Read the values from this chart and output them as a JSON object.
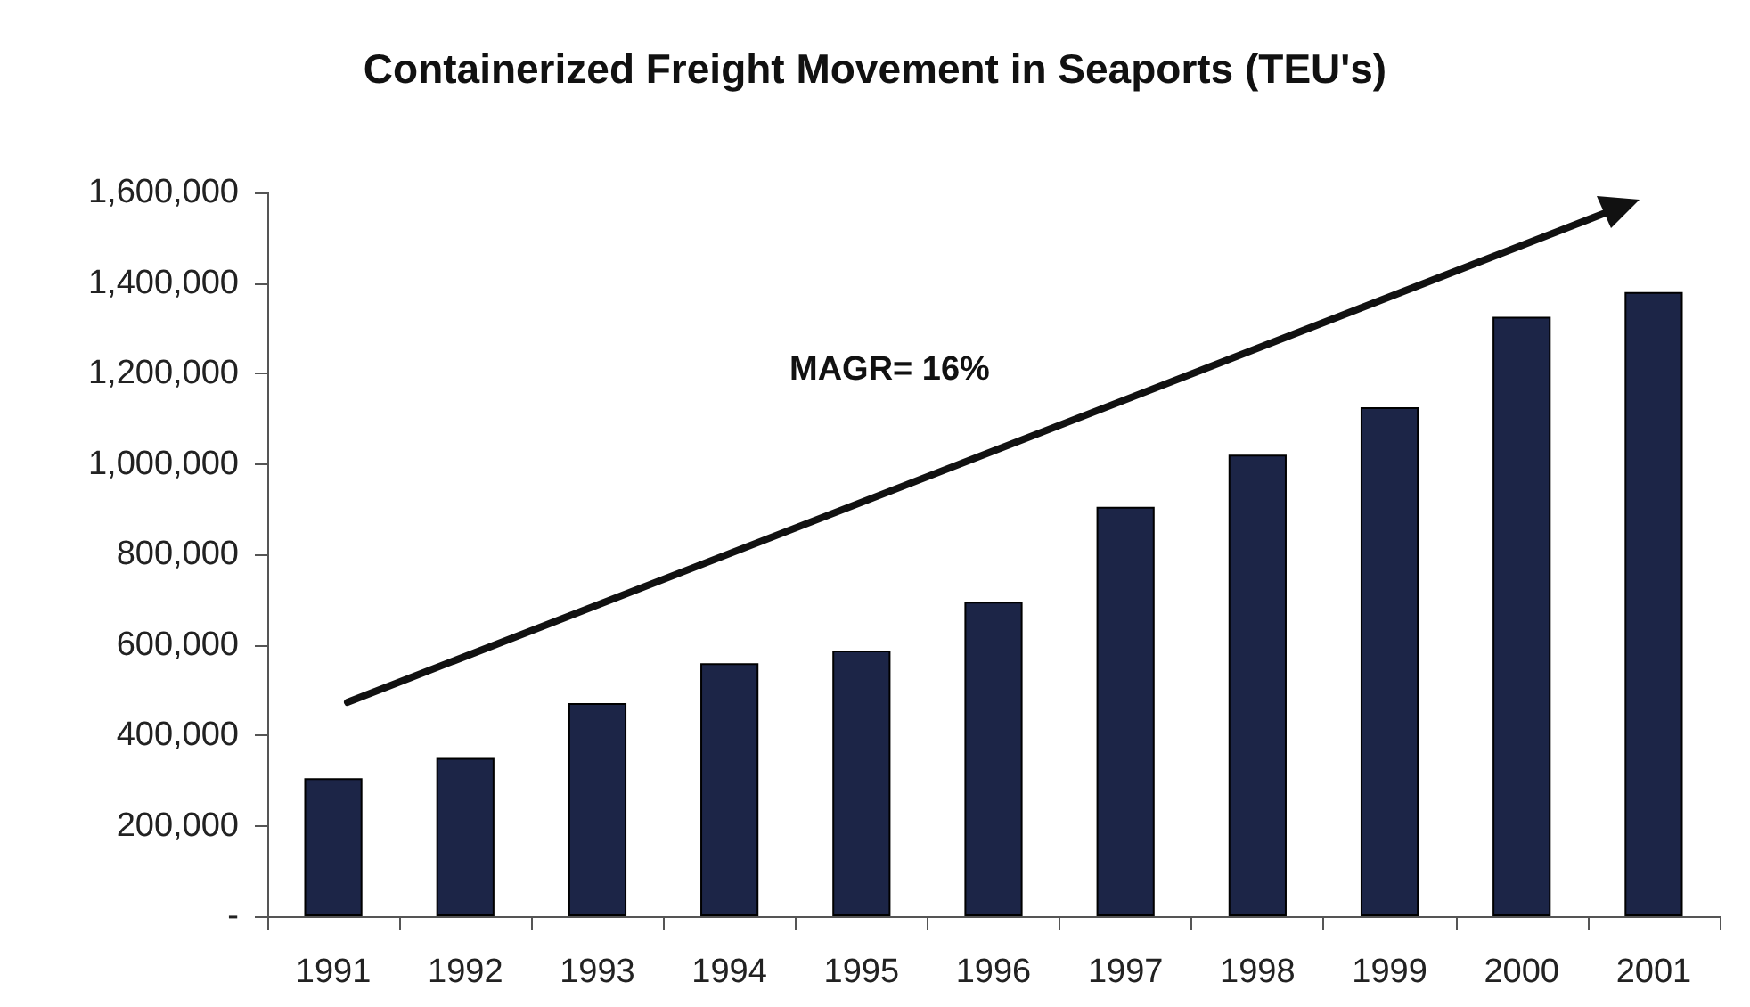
{
  "chart_data": {
    "type": "bar",
    "title": "Containerized Freight Movement in Seaports (TEU's)",
    "categories": [
      "1991",
      "1992",
      "1993",
      "1994",
      "1995",
      "1996",
      "1997",
      "1998",
      "1999",
      "2000",
      "2001"
    ],
    "values": [
      305000,
      350000,
      471000,
      559000,
      587000,
      695000,
      905000,
      1020000,
      1125000,
      1325000,
      1380000
    ],
    "color": "#1c2547",
    "ylim": [
      0,
      1600000
    ],
    "yticks": [
      {
        "value": 0,
        "label": "-"
      },
      {
        "value": 200000,
        "label": "200,000"
      },
      {
        "value": 400000,
        "label": "400,000"
      },
      {
        "value": 600000,
        "label": "600,000"
      },
      {
        "value": 800000,
        "label": "800,000"
      },
      {
        "value": 1000000,
        "label": "1,000,000"
      },
      {
        "value": 1200000,
        "label": "1,200,000"
      },
      {
        "value": 1400000,
        "label": "1,400,000"
      },
      {
        "value": 1600000,
        "label": "1,600,000"
      }
    ],
    "annotations": [
      "MAGR= 16%"
    ]
  }
}
